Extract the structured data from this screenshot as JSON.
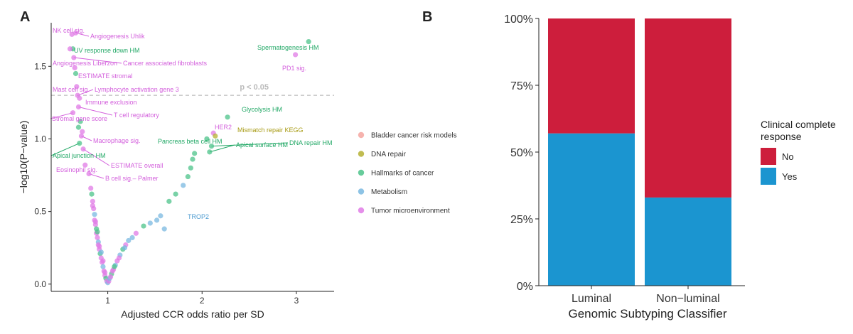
{
  "chart_data": [
    {
      "panel": "A",
      "type": "scatter",
      "xlabel": "Adjusted CCR odds ratio per SD",
      "ylabel": "−log10(P−value)",
      "xticks": [
        "1",
        "2",
        "3"
      ],
      "yticks": [
        "0.0",
        "0.5",
        "1.0",
        "1.5"
      ],
      "xlim": [
        0.4,
        3.4
      ],
      "ylim": [
        -0.05,
        1.8
      ],
      "threshold": {
        "y": 1.3,
        "label": "p < 0.05",
        "style": "dashed"
      },
      "colors": {
        "Bladder cancer risk models": "#f4a6a0",
        "DNA repair": "#b5b032",
        "Hallmarks of cancer": "#4cc38a",
        "Metabolism": "#79b8e0",
        "Tumor microenvironment": "#e07be6"
      },
      "legend": [
        "Bladder cancer risk models",
        "DNA repair",
        "Hallmarks of cancer",
        "Metabolism",
        "Tumor microenvironment"
      ],
      "labeled_points": [
        {
          "label": "NK cell sig.",
          "x": 0.62,
          "y": 1.72,
          "group": "Tumor microenvironment"
        },
        {
          "label": "Angiogenesis Uhlik",
          "x": 0.66,
          "y": 1.73,
          "group": "Tumor microenvironment"
        },
        {
          "label": "UV response down HM",
          "x": 0.63,
          "y": 1.62,
          "group": "Hallmarks of cancer"
        },
        {
          "label": "Angiogenesis Liberzon",
          "x": 0.6,
          "y": 1.62,
          "group": "Tumor microenvironment"
        },
        {
          "label": "Cancer associated fibroblasts",
          "x": 0.64,
          "y": 1.56,
          "group": "Tumor microenvironment"
        },
        {
          "label": "ESTIMATE stromal",
          "x": 0.65,
          "y": 1.49,
          "group": "Tumor microenvironment"
        },
        {
          "label": "Mast cell sig.",
          "x": 0.67,
          "y": 1.36,
          "group": "Tumor microenvironment"
        },
        {
          "label": "Lymphocyte activation gene 3",
          "x": 0.68,
          "y": 1.3,
          "group": "Tumor microenvironment"
        },
        {
          "label": "Immune exclusion",
          "x": 0.7,
          "y": 1.28,
          "group": "Tumor microenvironment"
        },
        {
          "label": "T cell regulatory",
          "x": 0.69,
          "y": 1.22,
          "group": "Tumor microenvironment"
        },
        {
          "label": "Stromal gene score",
          "x": 0.63,
          "y": 1.18,
          "group": "Tumor microenvironment"
        },
        {
          "label": "Macrophage sig.",
          "x": 0.72,
          "y": 1.02,
          "group": "Tumor microenvironment"
        },
        {
          "label": "Apical junction HM",
          "x": 0.7,
          "y": 0.97,
          "group": "Hallmarks of cancer"
        },
        {
          "label": "ESTIMATE overall",
          "x": 0.74,
          "y": 0.93,
          "group": "Tumor microenvironment"
        },
        {
          "label": "Eosinophil sig.",
          "x": 0.76,
          "y": 0.82,
          "group": "Tumor microenvironment"
        },
        {
          "label": "B cell sig.– Palmer",
          "x": 0.8,
          "y": 0.76,
          "group": "Tumor microenvironment"
        },
        {
          "label": "Spermatogenesis HM",
          "x": 3.13,
          "y": 1.67,
          "group": "Hallmarks of cancer"
        },
        {
          "label": "PD1 sig.",
          "x": 2.99,
          "y": 1.58,
          "group": "Tumor microenvironment"
        },
        {
          "label": "Glycolysis HM",
          "x": 2.27,
          "y": 1.15,
          "group": "Hallmarks of cancer"
        },
        {
          "label": "HER2",
          "x": 2.12,
          "y": 1.04,
          "group": "Tumor microenvironment"
        },
        {
          "label": "Mismatch repair KEGG",
          "x": 2.14,
          "y": 1.02,
          "group": "DNA repair"
        },
        {
          "label": "Pancreas beta cell HM",
          "x": 2.05,
          "y": 1.0,
          "group": "Hallmarks of cancer"
        },
        {
          "label": "Apical surface HM",
          "x": 2.08,
          "y": 0.91,
          "group": "Hallmarks of cancer"
        },
        {
          "label": "DNA repair HM",
          "x": 2.1,
          "y": 0.95,
          "group": "Hallmarks of cancer"
        },
        {
          "label": "TROP2",
          "x": 1.6,
          "y": 0.38,
          "group": "Metabolism"
        }
      ],
      "points": [
        {
          "x": 0.62,
          "y": 1.72,
          "g": 4
        },
        {
          "x": 0.66,
          "y": 1.73,
          "g": 4
        },
        {
          "x": 0.63,
          "y": 1.62,
          "g": 2
        },
        {
          "x": 0.6,
          "y": 1.62,
          "g": 4
        },
        {
          "x": 0.64,
          "y": 1.56,
          "g": 4
        },
        {
          "x": 0.65,
          "y": 1.49,
          "g": 4
        },
        {
          "x": 0.67,
          "y": 1.36,
          "g": 4
        },
        {
          "x": 0.68,
          "y": 1.3,
          "g": 4
        },
        {
          "x": 0.7,
          "y": 1.28,
          "g": 4
        },
        {
          "x": 0.69,
          "y": 1.22,
          "g": 4
        },
        {
          "x": 0.63,
          "y": 1.18,
          "g": 4
        },
        {
          "x": 0.72,
          "y": 1.02,
          "g": 4
        },
        {
          "x": 0.7,
          "y": 0.97,
          "g": 2
        },
        {
          "x": 0.74,
          "y": 0.93,
          "g": 4
        },
        {
          "x": 0.76,
          "y": 0.82,
          "g": 4
        },
        {
          "x": 0.8,
          "y": 0.76,
          "g": 4
        },
        {
          "x": 0.69,
          "y": 1.08,
          "g": 2
        },
        {
          "x": 0.71,
          "y": 1.12,
          "g": 2
        },
        {
          "x": 0.73,
          "y": 1.05,
          "g": 4
        },
        {
          "x": 0.66,
          "y": 1.45,
          "g": 2
        },
        {
          "x": 0.82,
          "y": 0.66,
          "g": 4
        },
        {
          "x": 0.83,
          "y": 0.62,
          "g": 2
        },
        {
          "x": 0.84,
          "y": 0.57,
          "g": 4
        },
        {
          "x": 0.85,
          "y": 0.52,
          "g": 4
        },
        {
          "x": 0.86,
          "y": 0.48,
          "g": 3
        },
        {
          "x": 0.86,
          "y": 0.44,
          "g": 4
        },
        {
          "x": 0.87,
          "y": 0.41,
          "g": 4
        },
        {
          "x": 0.88,
          "y": 0.38,
          "g": 2
        },
        {
          "x": 0.88,
          "y": 0.35,
          "g": 4
        },
        {
          "x": 0.89,
          "y": 0.32,
          "g": 4
        },
        {
          "x": 0.9,
          "y": 0.29,
          "g": 3
        },
        {
          "x": 0.9,
          "y": 0.27,
          "g": 4
        },
        {
          "x": 0.91,
          "y": 0.24,
          "g": 4
        },
        {
          "x": 0.92,
          "y": 0.21,
          "g": 2
        },
        {
          "x": 0.93,
          "y": 0.18,
          "g": 4
        },
        {
          "x": 0.94,
          "y": 0.15,
          "g": 4
        },
        {
          "x": 0.95,
          "y": 0.12,
          "g": 3
        },
        {
          "x": 0.96,
          "y": 0.09,
          "g": 4
        },
        {
          "x": 0.97,
          "y": 0.06,
          "g": 4
        },
        {
          "x": 0.98,
          "y": 0.04,
          "g": 2
        },
        {
          "x": 0.99,
          "y": 0.02,
          "g": 4
        },
        {
          "x": 1.0,
          "y": 0.01,
          "g": 3
        },
        {
          "x": 1.01,
          "y": 0.02,
          "g": 4
        },
        {
          "x": 1.02,
          "y": 0.04,
          "g": 3
        },
        {
          "x": 1.04,
          "y": 0.07,
          "g": 2
        },
        {
          "x": 1.06,
          "y": 0.1,
          "g": 4
        },
        {
          "x": 1.08,
          "y": 0.13,
          "g": 3
        },
        {
          "x": 1.1,
          "y": 0.16,
          "g": 4
        },
        {
          "x": 1.13,
          "y": 0.2,
          "g": 3
        },
        {
          "x": 1.16,
          "y": 0.24,
          "g": 2
        },
        {
          "x": 1.19,
          "y": 0.27,
          "g": 4
        },
        {
          "x": 1.22,
          "y": 0.3,
          "g": 3
        },
        {
          "x": 1.26,
          "y": 0.32,
          "g": 3
        },
        {
          "x": 1.3,
          "y": 0.35,
          "g": 4
        },
        {
          "x": 1.38,
          "y": 0.4,
          "g": 2
        },
        {
          "x": 1.45,
          "y": 0.42,
          "g": 3
        },
        {
          "x": 1.52,
          "y": 0.44,
          "g": 3
        },
        {
          "x": 1.56,
          "y": 0.47,
          "g": 3
        },
        {
          "x": 1.6,
          "y": 0.38,
          "g": 3
        },
        {
          "x": 1.65,
          "y": 0.57,
          "g": 2
        },
        {
          "x": 1.72,
          "y": 0.62,
          "g": 2
        },
        {
          "x": 1.8,
          "y": 0.68,
          "g": 3
        },
        {
          "x": 1.85,
          "y": 0.74,
          "g": 2
        },
        {
          "x": 1.88,
          "y": 0.8,
          "g": 2
        },
        {
          "x": 1.9,
          "y": 0.86,
          "g": 2
        },
        {
          "x": 1.92,
          "y": 0.9,
          "g": 2
        },
        {
          "x": 2.12,
          "y": 1.04,
          "g": 4
        },
        {
          "x": 2.14,
          "y": 1.02,
          "g": 1
        },
        {
          "x": 2.05,
          "y": 1.0,
          "g": 2
        },
        {
          "x": 2.08,
          "y": 0.91,
          "g": 2
        },
        {
          "x": 2.1,
          "y": 0.95,
          "g": 2
        },
        {
          "x": 2.27,
          "y": 1.15,
          "g": 2
        },
        {
          "x": 2.99,
          "y": 1.58,
          "g": 4
        },
        {
          "x": 3.13,
          "y": 1.67,
          "g": 2
        },
        {
          "x": 0.84,
          "y": 0.54,
          "g": 4
        },
        {
          "x": 0.87,
          "y": 0.43,
          "g": 4
        },
        {
          "x": 0.89,
          "y": 0.36,
          "g": 2
        },
        {
          "x": 0.91,
          "y": 0.26,
          "g": 4
        },
        {
          "x": 0.93,
          "y": 0.22,
          "g": 3
        },
        {
          "x": 0.95,
          "y": 0.16,
          "g": 4
        },
        {
          "x": 0.97,
          "y": 0.08,
          "g": 4
        },
        {
          "x": 1.03,
          "y": 0.05,
          "g": 4
        },
        {
          "x": 1.05,
          "y": 0.09,
          "g": 4
        },
        {
          "x": 1.07,
          "y": 0.12,
          "g": 2
        },
        {
          "x": 1.12,
          "y": 0.18,
          "g": 4
        },
        {
          "x": 1.18,
          "y": 0.25,
          "g": 3
        }
      ]
    },
    {
      "panel": "B",
      "type": "bar",
      "stacked": true,
      "percent": true,
      "xlabel": "Genomic Subtyping Classifier",
      "ylabel": "",
      "categories": [
        "Luminal",
        "Non−luminal"
      ],
      "yticks": [
        "0%",
        "25%",
        "50%",
        "75%",
        "100%"
      ],
      "ylim": [
        0,
        100
      ],
      "legend_title_line1": "Clinical complete",
      "legend_title_line2": "response",
      "series": [
        {
          "name": "Yes",
          "values": [
            57,
            33
          ],
          "color": "#1b95d0"
        },
        {
          "name": "No",
          "values": [
            43,
            67
          ],
          "color": "#cd1e3c"
        }
      ],
      "legend_order": [
        "No",
        "Yes"
      ]
    }
  ]
}
